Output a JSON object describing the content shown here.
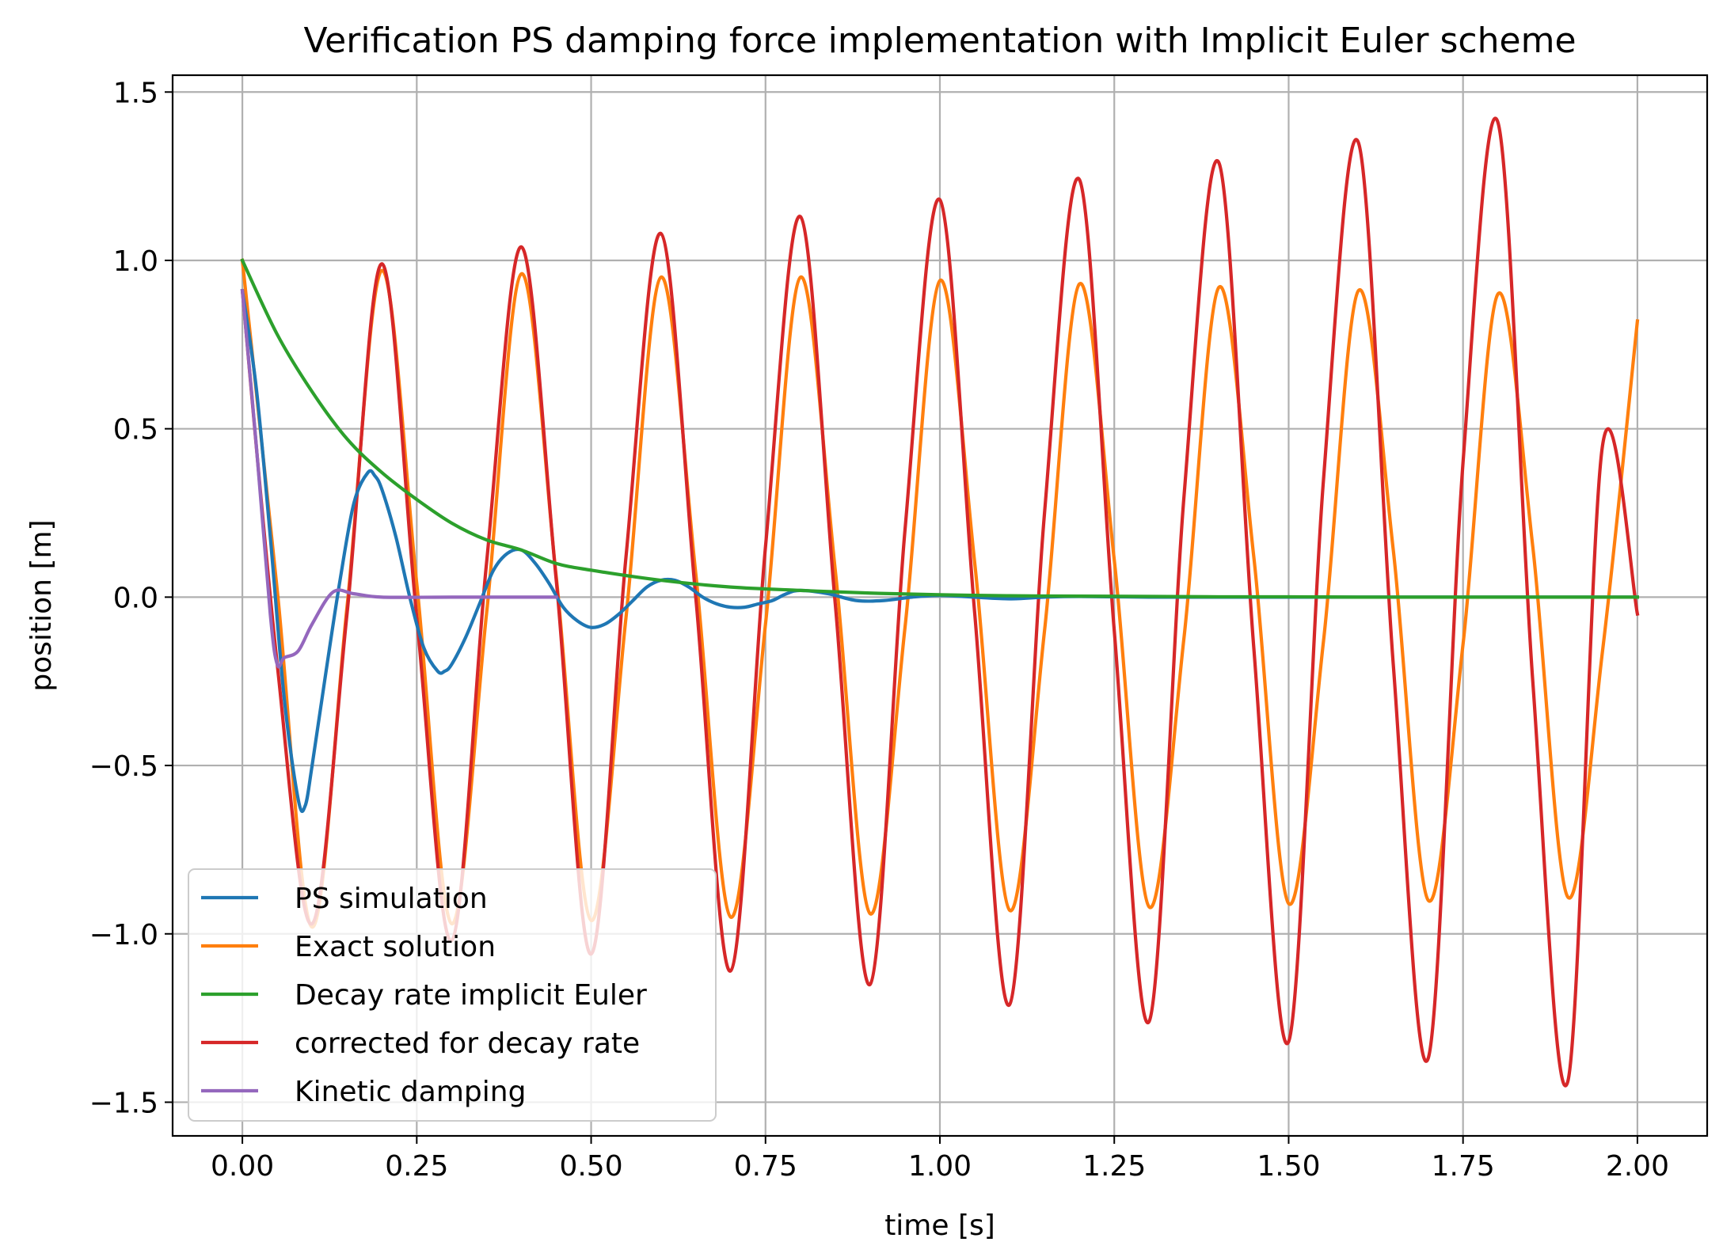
{
  "chart_data": {
    "type": "line",
    "title": "Verification PS damping force implementation with Implicit Euler scheme",
    "xlabel": "time [s]",
    "ylabel": "position [m]",
    "xlim": [
      -0.1,
      2.1
    ],
    "ylim": [
      -1.6,
      1.55
    ],
    "xticks": [
      0.0,
      0.25,
      0.5,
      0.75,
      1.0,
      1.25,
      1.5,
      1.75,
      2.0
    ],
    "xtick_labels": [
      "0.00",
      "0.25",
      "0.50",
      "0.75",
      "1.00",
      "1.25",
      "1.50",
      "1.75",
      "2.00"
    ],
    "yticks": [
      -1.5,
      -1.0,
      -0.5,
      0.0,
      0.5,
      1.0,
      1.5
    ],
    "ytick_labels": [
      "−1.5",
      "−1.0",
      "−0.5",
      "0.0",
      "0.5",
      "1.0",
      "1.5"
    ],
    "grid": true,
    "legend_position": "lower-left",
    "series": [
      {
        "name": "PS simulation",
        "color": "#1f77b4",
        "x": [
          0.0,
          0.02,
          0.04,
          0.06,
          0.08,
          0.09,
          0.1,
          0.12,
          0.14,
          0.16,
          0.18,
          0.19,
          0.2,
          0.22,
          0.24,
          0.26,
          0.28,
          0.29,
          0.3,
          0.32,
          0.34,
          0.36,
          0.38,
          0.4,
          0.42,
          0.44,
          0.46,
          0.48,
          0.5,
          0.52,
          0.54,
          0.56,
          0.58,
          0.6,
          0.62,
          0.64,
          0.66,
          0.68,
          0.7,
          0.72,
          0.74,
          0.76,
          0.78,
          0.8,
          0.84,
          0.88,
          0.92,
          0.96,
          1.0,
          1.05,
          1.1,
          1.15,
          1.2,
          1.3,
          1.4,
          1.5,
          1.6,
          1.7,
          1.8,
          1.9,
          2.0
        ],
        "values": [
          0.91,
          0.62,
          0.18,
          -0.3,
          -0.6,
          -0.62,
          -0.5,
          -0.22,
          0.05,
          0.28,
          0.37,
          0.36,
          0.32,
          0.18,
          0.0,
          -0.15,
          -0.22,
          -0.22,
          -0.2,
          -0.12,
          -0.02,
          0.08,
          0.13,
          0.14,
          0.1,
          0.04,
          -0.03,
          -0.07,
          -0.09,
          -0.08,
          -0.05,
          -0.01,
          0.03,
          0.05,
          0.05,
          0.03,
          0.0,
          -0.02,
          -0.03,
          -0.03,
          -0.02,
          -0.01,
          0.01,
          0.02,
          0.01,
          -0.01,
          -0.01,
          0.0,
          0.005,
          0.0,
          -0.005,
          0.0,
          0.002,
          0.0,
          0.0,
          0.0,
          0.0,
          0.0,
          0.0,
          0.0,
          0.0
        ]
      },
      {
        "name": "Exact solution",
        "color": "#ff7f0e",
        "x": [
          0.0,
          0.05,
          0.1,
          0.15,
          0.2,
          0.25,
          0.3,
          0.35,
          0.4,
          0.45,
          0.5,
          0.55,
          0.6,
          0.65,
          0.7,
          0.75,
          0.8,
          0.85,
          0.9,
          0.95,
          1.0,
          1.05,
          1.1,
          1.15,
          1.2,
          1.25,
          1.3,
          1.35,
          1.4,
          1.45,
          1.5,
          1.55,
          1.6,
          1.65,
          1.7,
          1.75,
          1.8,
          1.85,
          1.9,
          1.95,
          2.0
        ],
        "values": [
          1.0,
          0.02,
          -0.98,
          -0.03,
          0.97,
          0.04,
          -0.97,
          -0.05,
          0.96,
          0.06,
          -0.96,
          -0.06,
          0.95,
          0.07,
          -0.95,
          -0.08,
          0.95,
          0.08,
          -0.94,
          -0.09,
          0.94,
          0.1,
          -0.93,
          -0.1,
          0.93,
          0.11,
          -0.92,
          -0.12,
          0.92,
          0.12,
          -0.91,
          -0.13,
          0.91,
          0.14,
          -0.9,
          -0.14,
          0.9,
          0.15,
          -0.89,
          -0.16,
          0.82
        ]
      },
      {
        "name": "Decay rate implicit Euler",
        "color": "#2ca02c",
        "x": [
          0.0,
          0.05,
          0.1,
          0.15,
          0.2,
          0.25,
          0.3,
          0.35,
          0.4,
          0.45,
          0.5,
          0.6,
          0.7,
          0.8,
          0.9,
          1.0,
          1.1,
          1.2,
          1.3,
          1.4,
          1.5,
          1.6,
          1.7,
          1.8,
          1.9,
          2.0
        ],
        "values": [
          1.0,
          0.78,
          0.61,
          0.47,
          0.37,
          0.29,
          0.22,
          0.17,
          0.14,
          0.1,
          0.08,
          0.05,
          0.03,
          0.02,
          0.012,
          0.007,
          0.004,
          0.003,
          0.002,
          0.001,
          0.001,
          0.0,
          0.0,
          0.0,
          0.0,
          0.0
        ]
      },
      {
        "name": "corrected for decay rate",
        "color": "#d62728",
        "x": [
          0.0,
          0.05,
          0.1,
          0.15,
          0.2,
          0.25,
          0.3,
          0.35,
          0.4,
          0.45,
          0.5,
          0.55,
          0.6,
          0.65,
          0.7,
          0.75,
          0.8,
          0.85,
          0.9,
          0.95,
          1.0,
          1.05,
          1.1,
          1.15,
          1.2,
          1.25,
          1.3,
          1.35,
          1.4,
          1.45,
          1.5,
          1.55,
          1.6,
          1.65,
          1.7,
          1.75,
          1.8,
          1.85,
          1.9,
          1.95,
          2.0
        ],
        "values": [
          0.91,
          -0.2,
          -0.97,
          -0.05,
          0.99,
          -0.06,
          -1.02,
          0.1,
          1.04,
          0.05,
          -1.06,
          0.12,
          1.08,
          0.0,
          -1.11,
          0.15,
          1.13,
          -0.02,
          -1.15,
          0.2,
          1.18,
          -0.05,
          -1.21,
          0.25,
          1.24,
          -0.1,
          -1.26,
          0.3,
          1.29,
          -0.15,
          -1.32,
          0.35,
          1.35,
          -0.2,
          -1.37,
          0.4,
          1.41,
          -0.25,
          -1.44,
          0.45,
          -0.05
        ]
      },
      {
        "name": "Kinetic damping",
        "color": "#9467bd",
        "x": [
          0.0,
          0.02,
          0.04,
          0.05,
          0.06,
          0.08,
          0.1,
          0.13,
          0.16,
          0.2,
          0.3,
          0.45
        ],
        "values": [
          0.91,
          0.45,
          -0.05,
          -0.2,
          -0.18,
          -0.16,
          -0.08,
          0.015,
          0.01,
          0.0,
          0.0,
          0.0
        ]
      }
    ]
  }
}
